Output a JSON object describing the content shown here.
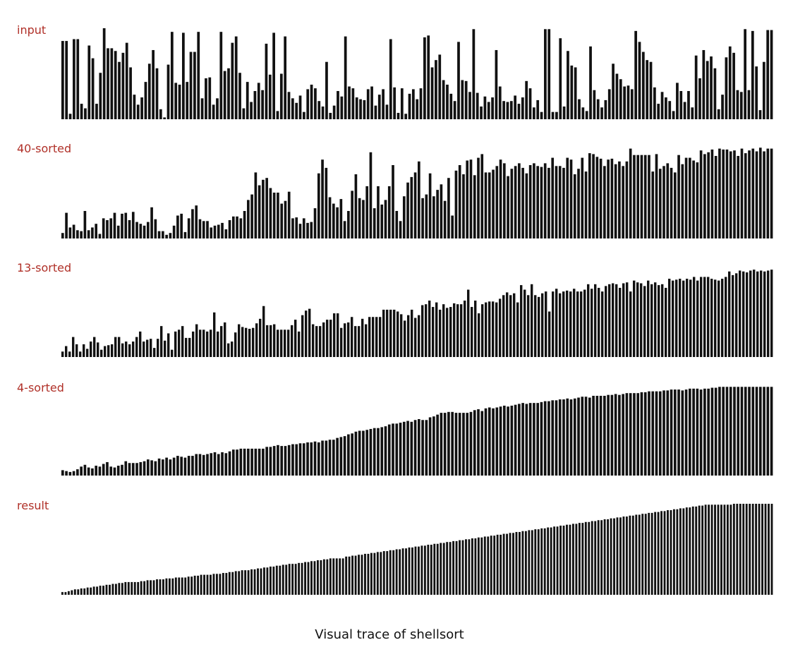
{
  "caption": "Visual trace of shellsort",
  "colors": {
    "label": "#b03028",
    "bar": "#111111",
    "background": "#ffffff"
  },
  "chart_data": {
    "type": "bar",
    "title": "",
    "grid": false,
    "panels": [
      {
        "label": "input",
        "values": [
          86,
          86,
          6,
          88,
          88,
          17,
          12,
          81,
          67,
          17,
          51,
          100,
          78,
          78,
          75,
          63,
          73,
          84,
          57,
          27,
          16,
          24,
          41,
          61,
          76,
          56,
          11,
          2,
          60,
          96,
          40,
          38,
          95,
          41,
          74,
          74,
          96,
          23,
          45,
          46,
          16,
          23,
          96,
          53,
          56,
          84,
          91,
          51,
          12,
          41,
          19,
          31,
          40,
          32,
          83,
          49,
          95,
          9,
          50,
          91,
          30,
          23,
          18,
          26,
          8,
          33,
          38,
          34,
          20,
          14,
          63,
          7,
          15,
          31,
          25,
          91,
          36,
          34,
          24,
          22,
          21,
          33,
          36,
          15,
          27,
          33,
          16,
          88,
          35,
          7,
          34,
          6,
          28,
          33,
          22,
          34,
          90,
          92,
          57,
          65,
          71,
          43,
          38,
          28,
          20,
          85,
          43,
          42,
          30,
          99,
          29,
          14,
          25,
          19,
          24,
          76,
          36,
          20,
          19,
          20,
          26,
          17,
          24,
          42,
          34,
          13,
          21,
          8,
          99,
          99,
          8,
          8,
          89,
          14,
          75,
          59,
          57,
          22,
          13,
          9,
          80,
          32,
          22,
          13,
          21,
          33,
          61,
          50,
          44,
          36,
          37,
          33,
          97,
          85,
          74,
          65,
          63,
          35,
          17,
          30,
          24,
          20,
          9,
          40,
          31,
          19,
          31,
          13,
          70,
          45,
          76,
          64,
          69,
          56,
          11,
          27,
          68,
          80,
          73,
          32,
          30,
          99,
          32,
          97,
          58,
          10,
          63,
          98,
          98
        ],
        "panel_top": 40,
        "panel_bottom": 169
      },
      {
        "label": "40-sorted",
        "values": [
          6,
          28,
          12,
          15,
          9,
          8,
          30,
          9,
          12,
          16,
          5,
          22,
          20,
          22,
          28,
          14,
          27,
          28,
          20,
          29,
          18,
          16,
          14,
          18,
          34,
          21,
          8,
          8,
          4,
          6,
          14,
          25,
          27,
          7,
          22,
          32,
          36,
          21,
          19,
          19,
          12,
          14,
          15,
          17,
          10,
          20,
          24,
          24,
          22,
          30,
          42,
          48,
          72,
          58,
          64,
          66,
          55,
          50,
          50,
          38,
          41,
          51,
          22,
          23,
          16,
          22,
          17,
          18,
          33,
          71,
          86,
          77,
          45,
          38,
          34,
          43,
          19,
          30,
          52,
          70,
          44,
          42,
          57,
          94,
          33,
          57,
          37,
          42,
          57,
          80,
          30,
          19,
          46,
          61,
          67,
          72,
          84,
          44,
          48,
          71,
          46,
          53,
          59,
          41,
          66,
          25,
          74,
          80,
          70,
          85,
          86,
          69,
          88,
          92,
          72,
          72,
          75,
          79,
          86,
          82,
          68,
          76,
          79,
          82,
          77,
          71,
          80,
          82,
          79,
          78,
          82,
          77,
          88,
          79,
          79,
          77,
          88,
          86,
          70,
          76,
          88,
          73,
          93,
          92,
          89,
          87,
          79,
          86,
          87,
          81,
          84,
          79,
          84,
          98,
          91,
          91,
          91,
          91,
          91,
          73,
          92,
          76,
          79,
          82,
          77,
          72,
          91,
          81,
          88,
          88,
          85,
          83,
          96,
          92,
          94,
          97,
          90,
          98,
          97,
          97,
          95,
          96,
          90,
          98,
          93,
          96,
          98,
          95,
          99,
          95,
          98,
          98
        ],
        "panel_top": 208,
        "panel_bottom": 338
      },
      {
        "label": "13-sorted",
        "values": [
          6,
          12,
          6,
          22,
          14,
          6,
          14,
          9,
          17,
          22,
          16,
          8,
          12,
          13,
          14,
          22,
          22,
          15,
          17,
          14,
          17,
          22,
          28,
          17,
          19,
          20,
          10,
          20,
          34,
          18,
          26,
          8,
          28,
          30,
          34,
          21,
          21,
          28,
          36,
          30,
          30,
          28,
          30,
          49,
          28,
          34,
          38,
          15,
          17,
          27,
          36,
          33,
          32,
          31,
          32,
          37,
          42,
          56,
          35,
          35,
          36,
          30,
          30,
          30,
          30,
          35,
          41,
          28,
          46,
          51,
          53,
          36,
          34,
          34,
          38,
          41,
          41,
          48,
          48,
          32,
          37,
          38,
          44,
          34,
          34,
          42,
          36,
          44,
          44,
          44,
          44,
          52,
          52,
          52,
          52,
          50,
          47,
          40,
          46,
          52,
          43,
          46,
          57,
          58,
          62,
          55,
          60,
          52,
          58,
          54,
          55,
          59,
          58,
          58,
          62,
          74,
          55,
          62,
          48,
          58,
          60,
          61,
          61,
          60,
          64,
          68,
          71,
          68,
          70,
          60,
          79,
          74,
          68,
          80,
          68,
          66,
          70,
          72,
          50,
          72,
          75,
          70,
          72,
          73,
          72,
          75,
          72,
          72,
          74,
          80,
          75,
          80,
          76,
          72,
          78,
          80,
          81,
          80,
          76,
          81,
          82,
          72,
          84,
          82,
          81,
          78,
          84,
          80,
          82,
          79,
          80,
          76,
          86,
          84,
          85,
          86,
          84,
          86,
          85,
          88,
          84,
          88,
          88,
          88,
          86,
          85,
          84,
          86,
          88,
          94,
          90,
          92,
          95,
          94,
          93,
          95,
          96,
          94,
          95,
          94,
          95,
          96
        ],
        "panel_top": 377,
        "panel_bottom": 506
      },
      {
        "label": "4-sorted",
        "values": [
          6,
          5,
          4,
          5,
          7,
          10,
          12,
          9,
          8,
          11,
          10,
          13,
          15,
          10,
          9,
          11,
          12,
          16,
          14,
          14,
          14,
          15,
          16,
          18,
          17,
          16,
          19,
          18,
          20,
          18,
          20,
          22,
          21,
          20,
          22,
          22,
          24,
          24,
          23,
          24,
          25,
          26,
          24,
          26,
          25,
          27,
          29,
          29,
          30,
          30,
          30,
          30,
          30,
          30,
          30,
          32,
          32,
          33,
          34,
          33,
          33,
          34,
          35,
          35,
          36,
          36,
          37,
          37,
          38,
          37,
          39,
          39,
          40,
          40,
          42,
          43,
          44,
          46,
          47,
          49,
          50,
          50,
          51,
          52,
          53,
          53,
          54,
          55,
          57,
          58,
          58,
          59,
          60,
          61,
          60,
          62,
          63,
          62,
          62,
          65,
          66,
          68,
          70,
          70,
          71,
          71,
          70,
          70,
          70,
          70,
          71,
          73,
          74,
          72,
          75,
          76,
          75,
          76,
          77,
          78,
          77,
          78,
          79,
          80,
          81,
          80,
          81,
          81,
          81,
          82,
          83,
          83,
          84,
          84,
          85,
          85,
          86,
          85,
          86,
          87,
          88,
          88,
          87,
          89,
          89,
          89,
          89,
          90,
          90,
          91,
          90,
          91,
          92,
          92,
          92,
          92,
          93,
          93,
          94,
          94,
          94,
          94,
          95,
          95,
          96,
          96,
          96,
          95,
          96,
          97,
          97,
          97,
          96,
          97,
          97,
          98,
          98,
          99,
          99,
          99,
          99,
          99,
          99,
          99,
          99,
          99,
          99,
          99,
          99,
          99,
          99,
          99
        ],
        "panel_top": 547,
        "panel_bottom": 674
      },
      {
        "label": "result",
        "values": [
          3,
          3,
          4,
          5,
          6,
          6,
          7,
          7,
          8,
          8,
          9,
          9,
          10,
          10,
          11,
          11,
          12,
          12,
          13,
          13,
          14,
          14,
          14,
          14,
          14,
          15,
          15,
          16,
          16,
          16,
          17,
          17,
          17,
          18,
          18,
          18,
          19,
          19,
          19,
          19,
          20,
          20,
          21,
          21,
          22,
          22,
          22,
          22,
          23,
          23,
          23,
          24,
          24,
          25,
          25,
          26,
          26,
          27,
          27,
          27,
          28,
          28,
          29,
          29,
          30,
          30,
          31,
          31,
          32,
          32,
          33,
          33,
          34,
          34,
          34,
          35,
          35,
          36,
          36,
          37,
          37,
          38,
          38,
          39,
          39,
          40,
          40,
          40,
          40,
          40,
          42,
          42,
          43,
          43,
          44,
          44,
          45,
          45,
          46,
          46,
          47,
          47,
          48,
          48,
          49,
          49,
          50,
          50,
          51,
          51,
          52,
          52,
          53,
          53,
          54,
          54,
          55,
          55,
          56,
          56,
          57,
          57,
          58,
          58,
          59,
          59,
          60,
          60,
          61,
          61,
          62,
          62,
          63,
          63,
          64,
          64,
          65,
          65,
          66,
          66,
          67,
          67,
          68,
          68,
          69,
          69,
          70,
          70,
          71,
          71,
          72,
          72,
          73,
          73,
          74,
          74,
          75,
          75,
          76,
          76,
          77,
          77,
          78,
          78,
          79,
          79,
          80,
          80,
          81,
          81,
          82,
          82,
          83,
          83,
          84,
          84,
          85,
          85,
          86,
          86,
          87,
          87,
          88,
          88,
          89,
          89,
          90,
          90,
          91,
          91,
          92,
          92,
          93,
          93,
          94,
          94,
          95,
          95,
          96,
          96,
          97,
          97,
          98,
          98,
          99,
          99,
          99,
          99,
          99,
          99,
          99,
          99,
          99,
          100,
          100,
          100,
          100,
          100,
          100,
          100,
          100,
          100,
          100,
          100,
          100,
          100
        ],
        "panel_top": 714,
        "panel_bottom": 843
      }
    ]
  }
}
